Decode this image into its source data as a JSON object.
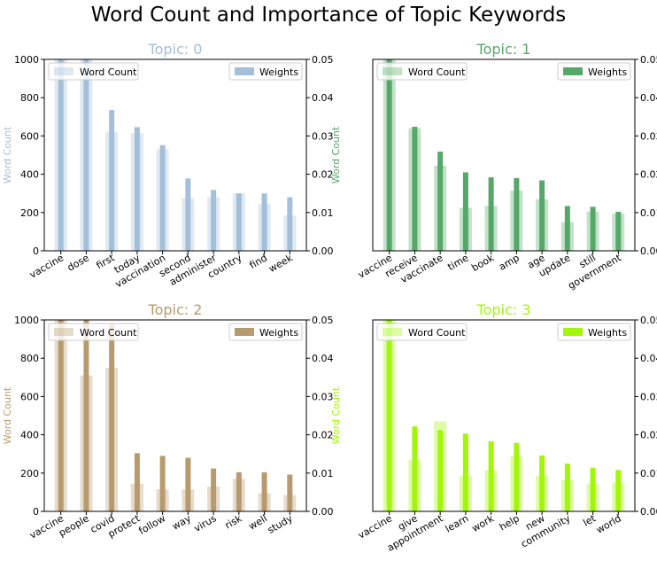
{
  "figure_title": "Word Count and Importance of Topic Keywords",
  "legend": {
    "count_label": "Word Count",
    "weight_label": "Weights"
  },
  "y_left_ticks": [
    "0",
    "200",
    "400",
    "600",
    "800",
    "1000"
  ],
  "y_right_ticks": [
    "0.00",
    "0.01",
    "0.02",
    "0.03",
    "0.04",
    "0.05"
  ],
  "chart_data": [
    {
      "type": "bar",
      "title": "Topic: 0",
      "color": "#a3bfd9",
      "ylabel": "Word Count",
      "ylim_left": [
        0,
        1000
      ],
      "ylim_right": [
        0,
        0.05
      ],
      "categories": [
        "vaccine",
        "dose",
        "first",
        "today",
        "vaccination",
        "second",
        "administer",
        "country",
        "find",
        "week"
      ],
      "word_count": [
        1000,
        1000,
        620,
        615,
        530,
        275,
        280,
        300,
        245,
        185
      ],
      "weights": [
        0.05,
        0.05,
        0.0368,
        0.0323,
        0.0276,
        0.0189,
        0.0159,
        0.015,
        0.015,
        0.014
      ],
      "legend": [
        "top-left",
        "top-right"
      ]
    },
    {
      "type": "bar",
      "title": "Topic: 1",
      "color": "#55a868",
      "ylabel": "Word Count",
      "ylim_left": [
        0,
        1000
      ],
      "ylim_right": [
        0,
        0.05
      ],
      "categories": [
        "vaccine",
        "receive",
        "vaccinate",
        "time",
        "book",
        "amp",
        "age",
        "update",
        "still",
        "government"
      ],
      "word_count": [
        1000,
        640,
        445,
        225,
        235,
        315,
        270,
        150,
        205,
        195
      ],
      "weights": [
        0.05,
        0.0324,
        0.0259,
        0.0205,
        0.0192,
        0.019,
        0.0184,
        0.0117,
        0.0115,
        0.0102
      ],
      "legend": [
        "top-left",
        "top-right"
      ]
    },
    {
      "type": "bar",
      "title": "Topic: 2",
      "color": "#b89a6e",
      "ylabel": "Word Count",
      "ylim_left": [
        0,
        1000
      ],
      "ylim_right": [
        0,
        0.05
      ],
      "categories": [
        "vaccine",
        "people",
        "covid",
        "protect",
        "follow",
        "way",
        "virus",
        "risk",
        "well",
        "study"
      ],
      "word_count": [
        1000,
        710,
        750,
        145,
        115,
        115,
        130,
        170,
        95,
        85
      ],
      "weights": [
        0.05,
        0.05,
        0.0488,
        0.0152,
        0.0145,
        0.014,
        0.0112,
        0.0102,
        0.0102,
        0.0096
      ],
      "legend": [
        "top-left",
        "top-right"
      ]
    },
    {
      "type": "bar",
      "title": "Topic: 3",
      "color": "#a1f707",
      "ylabel": "Word Count",
      "ylim_left": [
        0,
        1000
      ],
      "ylim_right": [
        0,
        0.05
      ],
      "categories": [
        "vaccine",
        "give",
        "appointment",
        "learn",
        "work",
        "help",
        "new",
        "community",
        "let",
        "world"
      ],
      "word_count": [
        1000,
        270,
        470,
        185,
        215,
        290,
        185,
        165,
        145,
        150
      ],
      "weights": [
        0.05,
        0.0222,
        0.0212,
        0.0203,
        0.0183,
        0.0179,
        0.0146,
        0.0125,
        0.0114,
        0.0108
      ],
      "legend": [
        "top-left",
        "top-right"
      ]
    }
  ]
}
